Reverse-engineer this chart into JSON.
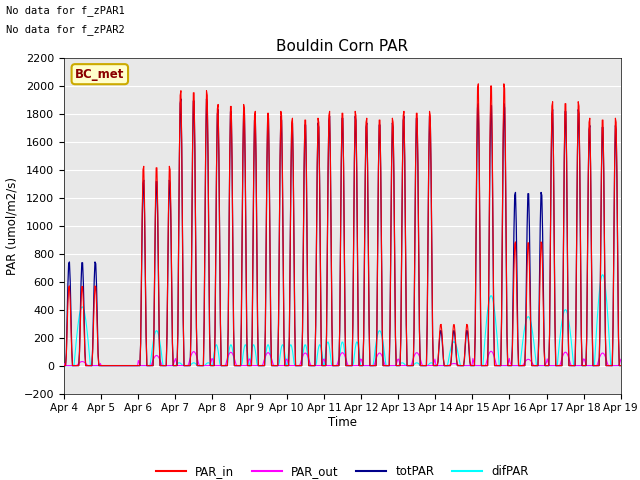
{
  "title": "Bouldin Corn PAR",
  "ylabel": "PAR (umol/m2/s)",
  "xlabel": "Time",
  "ylim": [
    -200,
    2200
  ],
  "legend_labels": [
    "PAR_in",
    "PAR_out",
    "totPAR",
    "difPAR"
  ],
  "legend_colors": [
    "red",
    "magenta",
    "darkblue",
    "cyan"
  ],
  "annotation1": "No data for f_zPAR1",
  "annotation2": "No data for f_zPAR2",
  "bc_met_label": "BC_met",
  "background_color": "#e8e8e8",
  "yticks": [
    -200,
    0,
    200,
    400,
    600,
    800,
    1000,
    1200,
    1400,
    1600,
    1800,
    2000,
    2200
  ],
  "xticklabels": [
    "Apr 4",
    "Apr 5",
    "Apr 6",
    "Apr 7",
    "Apr 8",
    "Apr 9",
    "Apr 10",
    "Apr 11",
    "Apr 12",
    "Apr 13",
    "Apr 14",
    "Apr 15",
    "Apr 16",
    "Apr 17",
    "Apr 18",
    "Apr 19"
  ]
}
